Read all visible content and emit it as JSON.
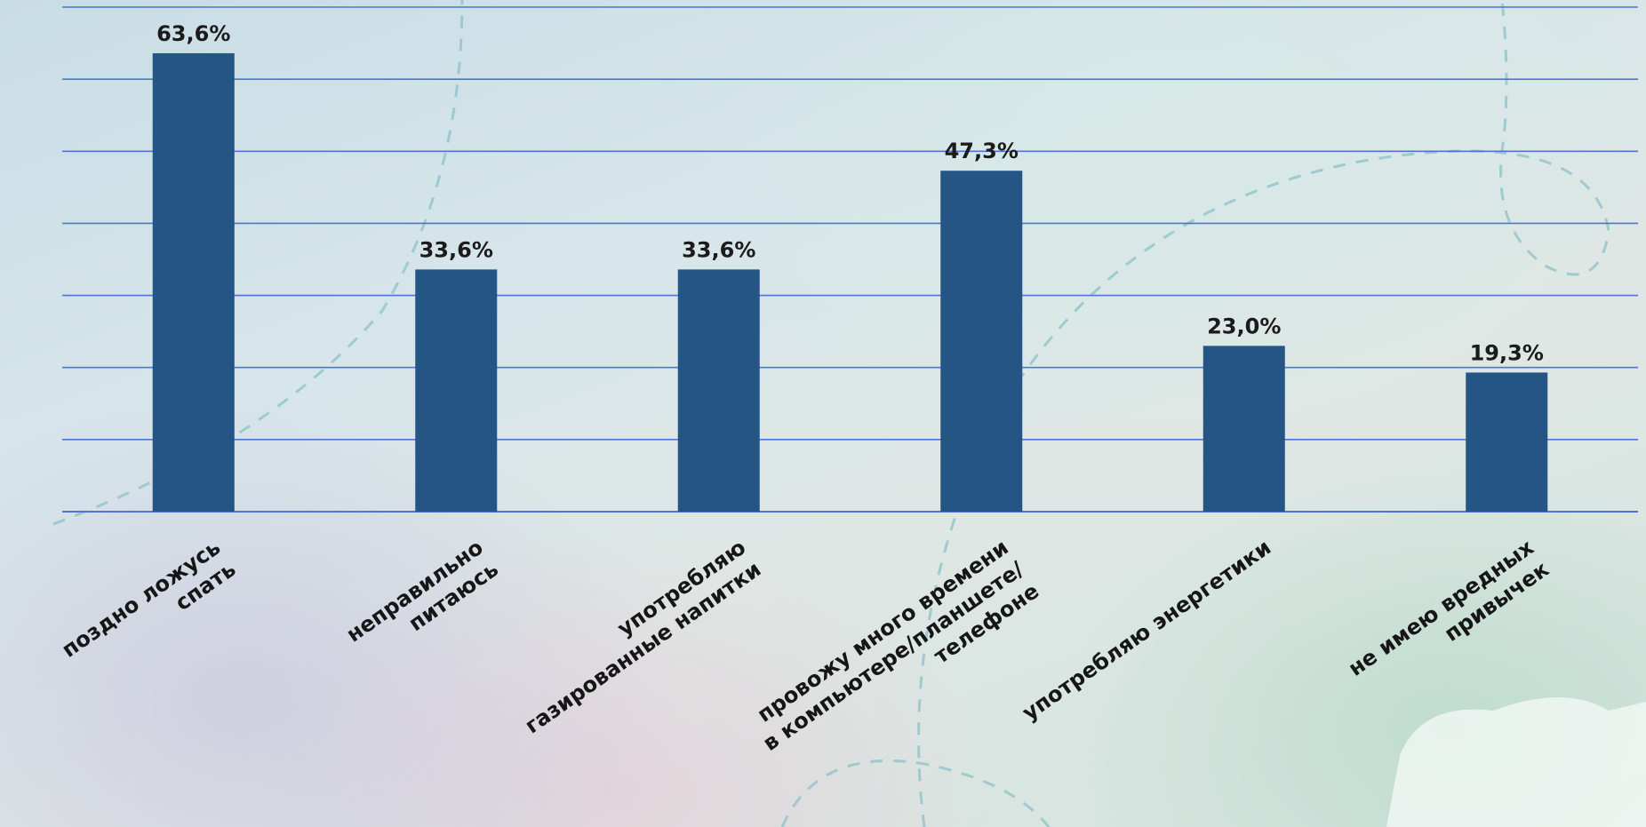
{
  "chart_data": {
    "type": "bar",
    "title": "",
    "xlabel": "",
    "ylabel": "",
    "unit": "%",
    "ylim": [
      0,
      70
    ],
    "grid": true,
    "legend": "none",
    "bar_color": "#255585",
    "grid_color": "#4e74d6",
    "categories": [
      [
        "поздно ложусь",
        "спать"
      ],
      [
        "неправильно",
        "питаюсь"
      ],
      [
        "употребляю",
        "газированные напитки"
      ],
      [
        "провожу много времени",
        "в компьютере/планшете/",
        "телефоне"
      ],
      [
        "употребляю энергетики"
      ],
      [
        "не имею вредных",
        "привычек"
      ]
    ],
    "values": [
      63.6,
      33.6,
      33.6,
      47.3,
      23.0,
      19.3
    ],
    "value_labels": [
      "63,6%",
      "33,6%",
      "33,6%",
      "47,3%",
      "23,0%",
      "19,3%"
    ]
  }
}
